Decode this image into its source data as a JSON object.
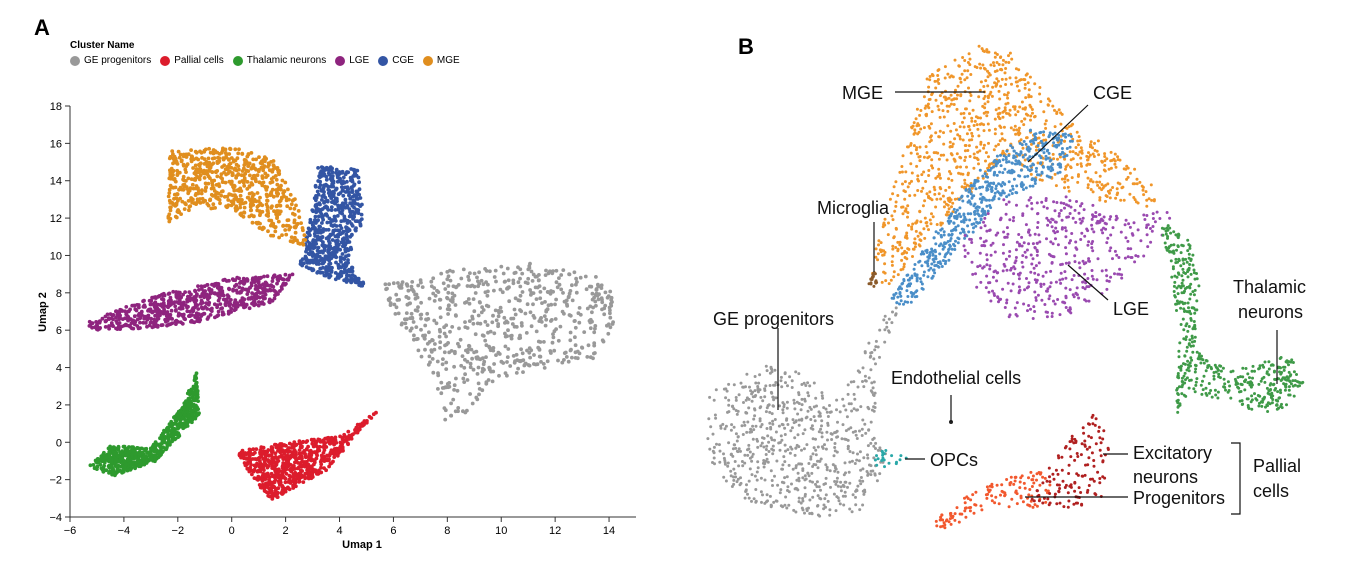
{
  "panel_a": {
    "letter": "A",
    "legend_title": "Cluster Name",
    "legend": [
      {
        "name": "GE progenitors",
        "color": "#999999"
      },
      {
        "name": "Pallial cells",
        "color": "#dc1c2c"
      },
      {
        "name": "Thalamic neurons",
        "color": "#2e9a2e"
      },
      {
        "name": "LGE",
        "color": "#8e247e"
      },
      {
        "name": "CGE",
        "color": "#3355a4"
      },
      {
        "name": "MGE",
        "color": "#e08e1e"
      }
    ]
  },
  "panel_b": {
    "letter": "B",
    "labels": {
      "mge": "MGE",
      "cge": "CGE",
      "microglia": "Microglia",
      "lge": "LGE",
      "thalamic1": "Thalamic",
      "thalamic2": "neurons",
      "ge_progenitors": "GE progenitors",
      "endothelial": "Endothelial cells",
      "opcs": "OPCs",
      "excitatory1": "Excitatory",
      "excitatory2": "neurons",
      "progenitors": "Progenitors",
      "pallial1": "Pallial",
      "pallial2": "cells"
    }
  },
  "chart_data": [
    {
      "type": "scatter",
      "title": "",
      "xlabel": "Umap 1",
      "ylabel": "Umap 2",
      "xlim": [
        -6,
        15
      ],
      "ylim": [
        -4,
        18
      ],
      "xticks": [
        -6,
        -4,
        -2,
        0,
        2,
        4,
        6,
        8,
        10,
        12,
        14
      ],
      "yticks": [
        -4,
        -2,
        0,
        2,
        4,
        6,
        8,
        10,
        12,
        14,
        16,
        18
      ],
      "legend_title": "Cluster Name",
      "legend_position": "top-left",
      "grid": false,
      "series": [
        {
          "name": "GE progenitors",
          "color": "#999999",
          "approx_region": [
            [
              5.5,
              8.5
            ],
            [
              8,
              9.2
            ],
            [
              11,
              9.6
            ],
            [
              14,
              8.8
            ],
            [
              14.3,
              6.2
            ],
            [
              13.5,
              4.5
            ],
            [
              10,
              3.5
            ],
            [
              8,
              0.6
            ],
            [
              7.5,
              3.5
            ],
            [
              6,
              7
            ]
          ]
        },
        {
          "name": "Pallial cells",
          "color": "#dc1c2c",
          "approx_region": [
            [
              0.2,
              -0.5
            ],
            [
              2,
              0
            ],
            [
              4,
              0.3
            ],
            [
              5.5,
              1.8
            ],
            [
              3.5,
              -1.5
            ],
            [
              1.5,
              -3.1
            ],
            [
              0.8,
              -2
            ]
          ]
        },
        {
          "name": "Thalamic neurons",
          "color": "#2e9a2e",
          "approx_region": [
            [
              -5.3,
              -1.3
            ],
            [
              -4.5,
              -0.2
            ],
            [
              -3,
              -0.3
            ],
            [
              -1.8,
              2
            ],
            [
              -1.3,
              3.8
            ],
            [
              -1.2,
              1.5
            ],
            [
              -2.8,
              -1
            ],
            [
              -4.4,
              -1.8
            ]
          ]
        },
        {
          "name": "LGE",
          "color": "#8e247e",
          "approx_region": [
            [
              -5.4,
              6.4
            ],
            [
              -3,
              7.8
            ],
            [
              0,
              8.8
            ],
            [
              2.3,
              9
            ],
            [
              1.5,
              7.5
            ],
            [
              -1,
              6.5
            ],
            [
              -3,
              6.1
            ],
            [
              -5.3,
              6
            ]
          ]
        },
        {
          "name": "CGE",
          "color": "#3355a4",
          "approx_region": [
            [
              2.5,
              9.5
            ],
            [
              3,
              12.5
            ],
            [
              3.2,
              14.8
            ],
            [
              4.7,
              14.6
            ],
            [
              4.9,
              12
            ],
            [
              4.3,
              9.8
            ],
            [
              5,
              8.3
            ],
            [
              3.6,
              8.8
            ]
          ]
        },
        {
          "name": "MGE",
          "color": "#e08e1e",
          "approx_region": [
            [
              -2.3,
              15.6
            ],
            [
              0,
              15.8
            ],
            [
              1.5,
              15.2
            ],
            [
              2.4,
              13
            ],
            [
              2.8,
              10.5
            ],
            [
              1.5,
              11
            ],
            [
              0,
              12.5
            ],
            [
              -1.5,
              12.5
            ],
            [
              -2.4,
              11.6
            ]
          ]
        }
      ]
    }
  ]
}
